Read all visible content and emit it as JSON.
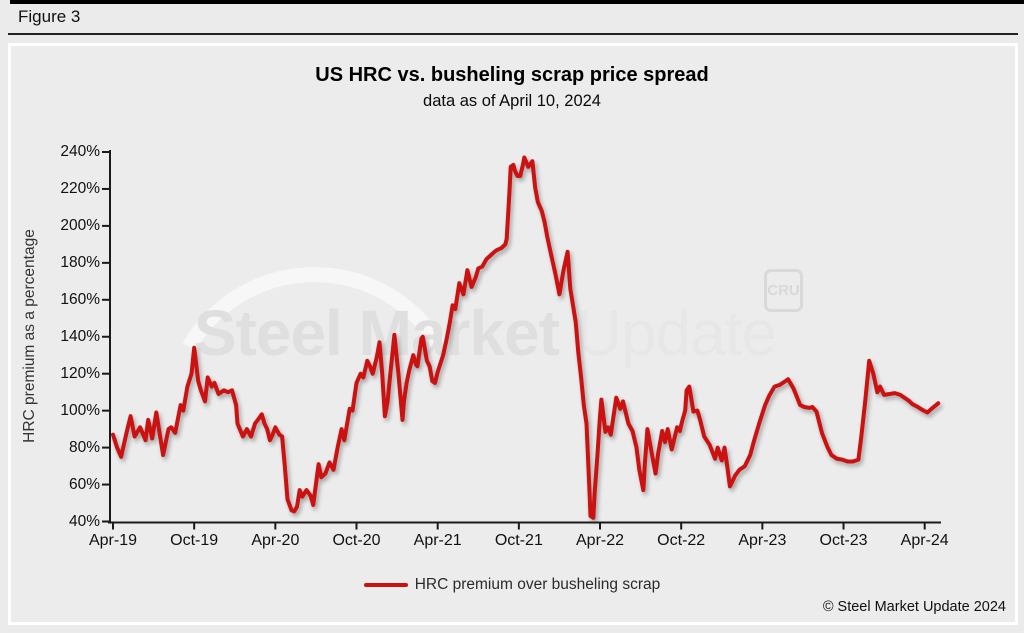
{
  "figure_label": "Figure 3",
  "panel": {
    "title": "US HRC vs. busheling scrap price spread",
    "subtitle": "data as of April 10, 2024",
    "ylabel": "HRC premium as a percentage",
    "legend_label": "HRC premium over busheling scrap",
    "copyright": "© Steel Market Update 2024"
  },
  "watermark": {
    "part1": "Steel Market",
    "part2": "Update",
    "cru": "CRU"
  },
  "colors": {
    "line": "#CC1111",
    "panel_bg": "#ECECEC",
    "axis": "#1A1A1A",
    "watermark_dark": "#DFDFDF",
    "watermark_light": "#E7E7E7",
    "arc": "#F7F7F7"
  },
  "chart_data": {
    "type": "line",
    "title": "US HRC vs. busheling scrap price spread",
    "subtitle": "data as of April 10, 2024",
    "xlabel": "",
    "ylabel": "HRC premium as a percentage",
    "x_unit": "months since Apr-2019 (weekly observations)",
    "x_tick_labels": [
      "Apr-19",
      "Oct-19",
      "Apr-20",
      "Oct-20",
      "Apr-21",
      "Oct-21",
      "Apr-22",
      "Oct-22",
      "Apr-23",
      "Oct-23",
      "Apr-24"
    ],
    "x_tick_months": [
      0,
      6,
      12,
      18,
      24,
      30,
      36,
      42,
      48,
      54,
      60
    ],
    "ylim": [
      40,
      240
    ],
    "y_ticks": [
      40,
      60,
      80,
      100,
      120,
      140,
      160,
      180,
      200,
      220,
      240
    ],
    "y_tick_suffix": "%",
    "grid": false,
    "legend_position": "bottom-center",
    "series": [
      {
        "name": "HRC premium over busheling scrap",
        "color": "#CC1111",
        "points": [
          [
            0,
            87
          ],
          [
            0.3,
            80
          ],
          [
            0.6,
            75
          ],
          [
            1,
            88
          ],
          [
            1.3,
            97
          ],
          [
            1.6,
            86
          ],
          [
            2,
            91
          ],
          [
            2.4,
            84
          ],
          [
            2.6,
            95
          ],
          [
            2.9,
            85
          ],
          [
            3.2,
            99
          ],
          [
            3.7,
            76
          ],
          [
            4.1,
            90
          ],
          [
            4.3,
            91
          ],
          [
            4.6,
            88
          ],
          [
            5,
            103
          ],
          [
            5.2,
            100
          ],
          [
            5.5,
            113
          ],
          [
            5.8,
            120
          ],
          [
            6,
            134
          ],
          [
            6.3,
            116
          ],
          [
            6.5,
            111
          ],
          [
            6.8,
            105
          ],
          [
            7,
            118
          ],
          [
            7.3,
            113
          ],
          [
            7.5,
            115
          ],
          [
            7.8,
            109
          ],
          [
            8.2,
            111
          ],
          [
            8.5,
            110
          ],
          [
            8.8,
            111
          ],
          [
            9.1,
            103
          ],
          [
            9.2,
            93
          ],
          [
            9.6,
            86
          ],
          [
            9.9,
            90
          ],
          [
            10.2,
            86
          ],
          [
            10.5,
            93
          ],
          [
            10.7,
            95
          ],
          [
            11,
            98
          ],
          [
            11.2,
            93
          ],
          [
            11.4,
            90
          ],
          [
            11.6,
            84
          ],
          [
            11.8,
            87
          ],
          [
            12,
            91
          ],
          [
            12.3,
            87
          ],
          [
            12.5,
            86
          ],
          [
            12.7,
            70
          ],
          [
            12.9,
            52
          ],
          [
            13.2,
            46
          ],
          [
            13.4,
            45.5
          ],
          [
            13.6,
            48
          ],
          [
            13.8,
            57
          ],
          [
            14,
            53.5
          ],
          [
            14.3,
            57
          ],
          [
            14.6,
            54
          ],
          [
            14.8,
            49
          ],
          [
            15.2,
            71
          ],
          [
            15.4,
            64
          ],
          [
            15.7,
            66
          ],
          [
            16,
            72
          ],
          [
            16.3,
            68
          ],
          [
            16.6,
            80
          ],
          [
            16.9,
            90
          ],
          [
            17.1,
            84
          ],
          [
            17.5,
            101
          ],
          [
            17.7,
            100
          ],
          [
            18,
            115
          ],
          [
            18.3,
            120
          ],
          [
            18.5,
            118
          ],
          [
            18.8,
            127
          ],
          [
            19,
            124
          ],
          [
            19.2,
            120
          ],
          [
            19.5,
            129
          ],
          [
            19.7,
            137
          ],
          [
            19.9,
            120
          ],
          [
            20.1,
            97
          ],
          [
            20.3,
            105
          ],
          [
            20.5,
            120
          ],
          [
            20.8,
            141
          ],
          [
            21.1,
            120
          ],
          [
            21.4,
            95
          ],
          [
            21.5,
            105
          ],
          [
            21.7,
            115
          ],
          [
            21.9,
            122
          ],
          [
            22.2,
            130
          ],
          [
            22.4,
            125
          ],
          [
            22.5,
            124
          ],
          [
            22.8,
            139
          ],
          [
            22.9,
            140
          ],
          [
            23.2,
            127
          ],
          [
            23.4,
            124
          ],
          [
            23.6,
            116
          ],
          [
            23.8,
            115
          ],
          [
            24,
            121
          ],
          [
            24.4,
            130
          ],
          [
            24.7,
            140
          ],
          [
            24.9,
            148
          ],
          [
            25.1,
            157
          ],
          [
            25.3,
            155
          ],
          [
            25.6,
            169
          ],
          [
            25.9,
            163
          ],
          [
            26.2,
            176
          ],
          [
            26.5,
            167
          ],
          [
            26.8,
            172
          ],
          [
            27,
            177
          ],
          [
            27.3,
            178
          ],
          [
            27.6,
            182
          ],
          [
            27.9,
            184
          ],
          [
            28.2,
            186
          ],
          [
            28.4,
            187
          ],
          [
            28.7,
            188
          ],
          [
            29,
            190
          ],
          [
            29.1,
            193
          ],
          [
            29.3,
            218
          ],
          [
            29.4,
            232
          ],
          [
            29.6,
            233
          ],
          [
            29.7,
            230
          ],
          [
            29.9,
            227
          ],
          [
            30.1,
            227
          ],
          [
            30.3,
            233
          ],
          [
            30.4,
            237
          ],
          [
            30.7,
            232
          ],
          [
            31,
            235
          ],
          [
            31.2,
            221
          ],
          [
            31.4,
            213
          ],
          [
            31.7,
            208
          ],
          [
            31.9,
            202
          ],
          [
            32.1,
            194
          ],
          [
            32.4,
            184
          ],
          [
            32.7,
            174
          ],
          [
            33,
            163
          ],
          [
            33.3,
            176
          ],
          [
            33.6,
            186
          ],
          [
            33.8,
            166
          ],
          [
            34,
            157
          ],
          [
            34.2,
            148
          ],
          [
            34.4,
            131
          ],
          [
            34.6,
            118
          ],
          [
            34.8,
            103
          ],
          [
            35,
            93
          ],
          [
            35.2,
            60
          ],
          [
            35.3,
            43
          ],
          [
            35.5,
            42
          ],
          [
            35.6,
            55
          ],
          [
            35.8,
            75
          ],
          [
            36,
            97
          ],
          [
            36.1,
            106
          ],
          [
            36.4,
            88.5
          ],
          [
            36.6,
            91
          ],
          [
            36.8,
            87
          ],
          [
            37,
            97
          ],
          [
            37.2,
            107
          ],
          [
            37.5,
            101
          ],
          [
            37.7,
            105
          ],
          [
            37.9,
            99
          ],
          [
            38.1,
            93
          ],
          [
            38.4,
            89
          ],
          [
            38.7,
            80
          ],
          [
            38.9,
            68
          ],
          [
            39.2,
            57
          ],
          [
            39.3,
            70
          ],
          [
            39.5,
            90
          ],
          [
            39.8,
            78
          ],
          [
            40.1,
            66
          ],
          [
            40.3,
            77
          ],
          [
            40.6,
            89
          ],
          [
            40.8,
            83
          ],
          [
            41,
            90
          ],
          [
            41.3,
            79
          ],
          [
            41.5,
            85
          ],
          [
            41.7,
            91
          ],
          [
            41.9,
            89
          ],
          [
            42.1,
            95
          ],
          [
            42.3,
            100
          ],
          [
            42.4,
            111
          ],
          [
            42.6,
            113
          ],
          [
            42.9,
            99.5
          ],
          [
            43.2,
            100
          ],
          [
            43.4,
            95
          ],
          [
            43.7,
            86
          ],
          [
            44.1,
            81.5
          ],
          [
            44.5,
            74
          ],
          [
            44.7,
            80
          ],
          [
            45,
            73
          ],
          [
            45.2,
            80
          ],
          [
            45.4,
            70
          ],
          [
            45.6,
            59
          ],
          [
            45.8,
            62
          ],
          [
            46,
            65
          ],
          [
            46.3,
            68
          ],
          [
            46.7,
            70
          ],
          [
            47.1,
            76
          ],
          [
            47.4,
            84
          ],
          [
            47.8,
            94
          ],
          [
            48.2,
            103
          ],
          [
            48.5,
            108
          ],
          [
            48.9,
            113
          ],
          [
            49.3,
            114
          ],
          [
            49.7,
            116
          ],
          [
            49.9,
            117
          ],
          [
            50.3,
            112
          ],
          [
            50.8,
            103
          ],
          [
            51.1,
            102
          ],
          [
            51.5,
            101.5
          ],
          [
            51.7,
            102
          ],
          [
            52,
            99.5
          ],
          [
            52.4,
            88
          ],
          [
            52.8,
            80.5
          ],
          [
            53.1,
            76
          ],
          [
            53.5,
            74
          ],
          [
            53.9,
            73.5
          ],
          [
            54.3,
            72.5
          ],
          [
            54.7,
            72.5
          ],
          [
            55.1,
            73.5
          ],
          [
            55.3,
            85
          ],
          [
            55.6,
            105
          ],
          [
            55.9,
            127
          ],
          [
            56.2,
            120
          ],
          [
            56.5,
            110
          ],
          [
            56.7,
            113
          ],
          [
            57,
            108.5
          ],
          [
            57.4,
            109
          ],
          [
            57.8,
            109.5
          ],
          [
            58.2,
            108.5
          ],
          [
            58.4,
            107.5
          ],
          [
            58.8,
            105.5
          ],
          [
            59.1,
            103.5
          ],
          [
            59.5,
            102
          ],
          [
            59.8,
            100.5
          ],
          [
            60.2,
            99
          ],
          [
            60.5,
            101
          ],
          [
            61,
            104
          ]
        ]
      }
    ]
  }
}
